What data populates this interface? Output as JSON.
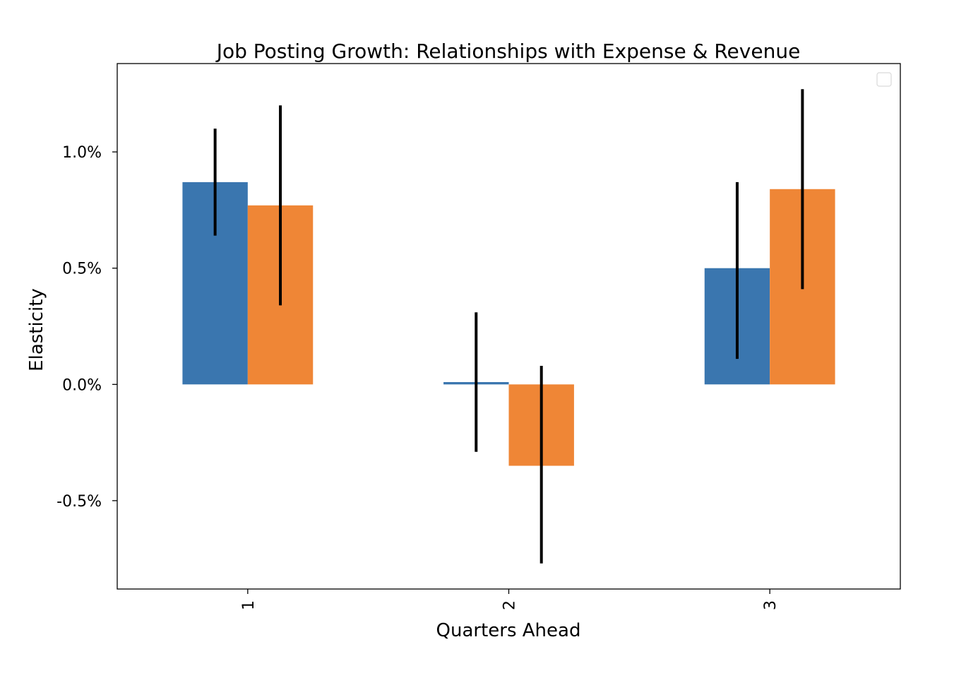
{
  "chart_data": {
    "type": "bar",
    "title": "Job Posting Growth: Relationships with Expense & Revenue",
    "xlabel": "Quarters Ahead",
    "ylabel": "Elasticity",
    "categories": [
      "1",
      "2",
      "3"
    ],
    "series": [
      {
        "color": "#3a76af",
        "values": [
          0.0087,
          0.0001,
          0.005
        ],
        "errors": [
          [
            0.0064,
            0.011
          ],
          [
            -0.0029,
            0.0031
          ],
          [
            0.0011,
            0.0087
          ]
        ]
      },
      {
        "color": "#ef8636",
        "values": [
          0.0077,
          -0.0035,
          0.0084
        ],
        "errors": [
          [
            0.0034,
            0.012
          ],
          [
            -0.0077,
            0.0008
          ],
          [
            0.0041,
            0.0127
          ]
        ]
      }
    ],
    "ylim": [
      -0.0088,
      0.0138
    ],
    "yticks": [
      -0.005,
      0.0,
      0.005,
      0.01
    ],
    "ytick_labels": [
      "-0.5%",
      "0.0%",
      "0.5%",
      "1.0%"
    ],
    "xtick_rotation": "vertical",
    "legend": "upper right, empty",
    "grid": false
  }
}
